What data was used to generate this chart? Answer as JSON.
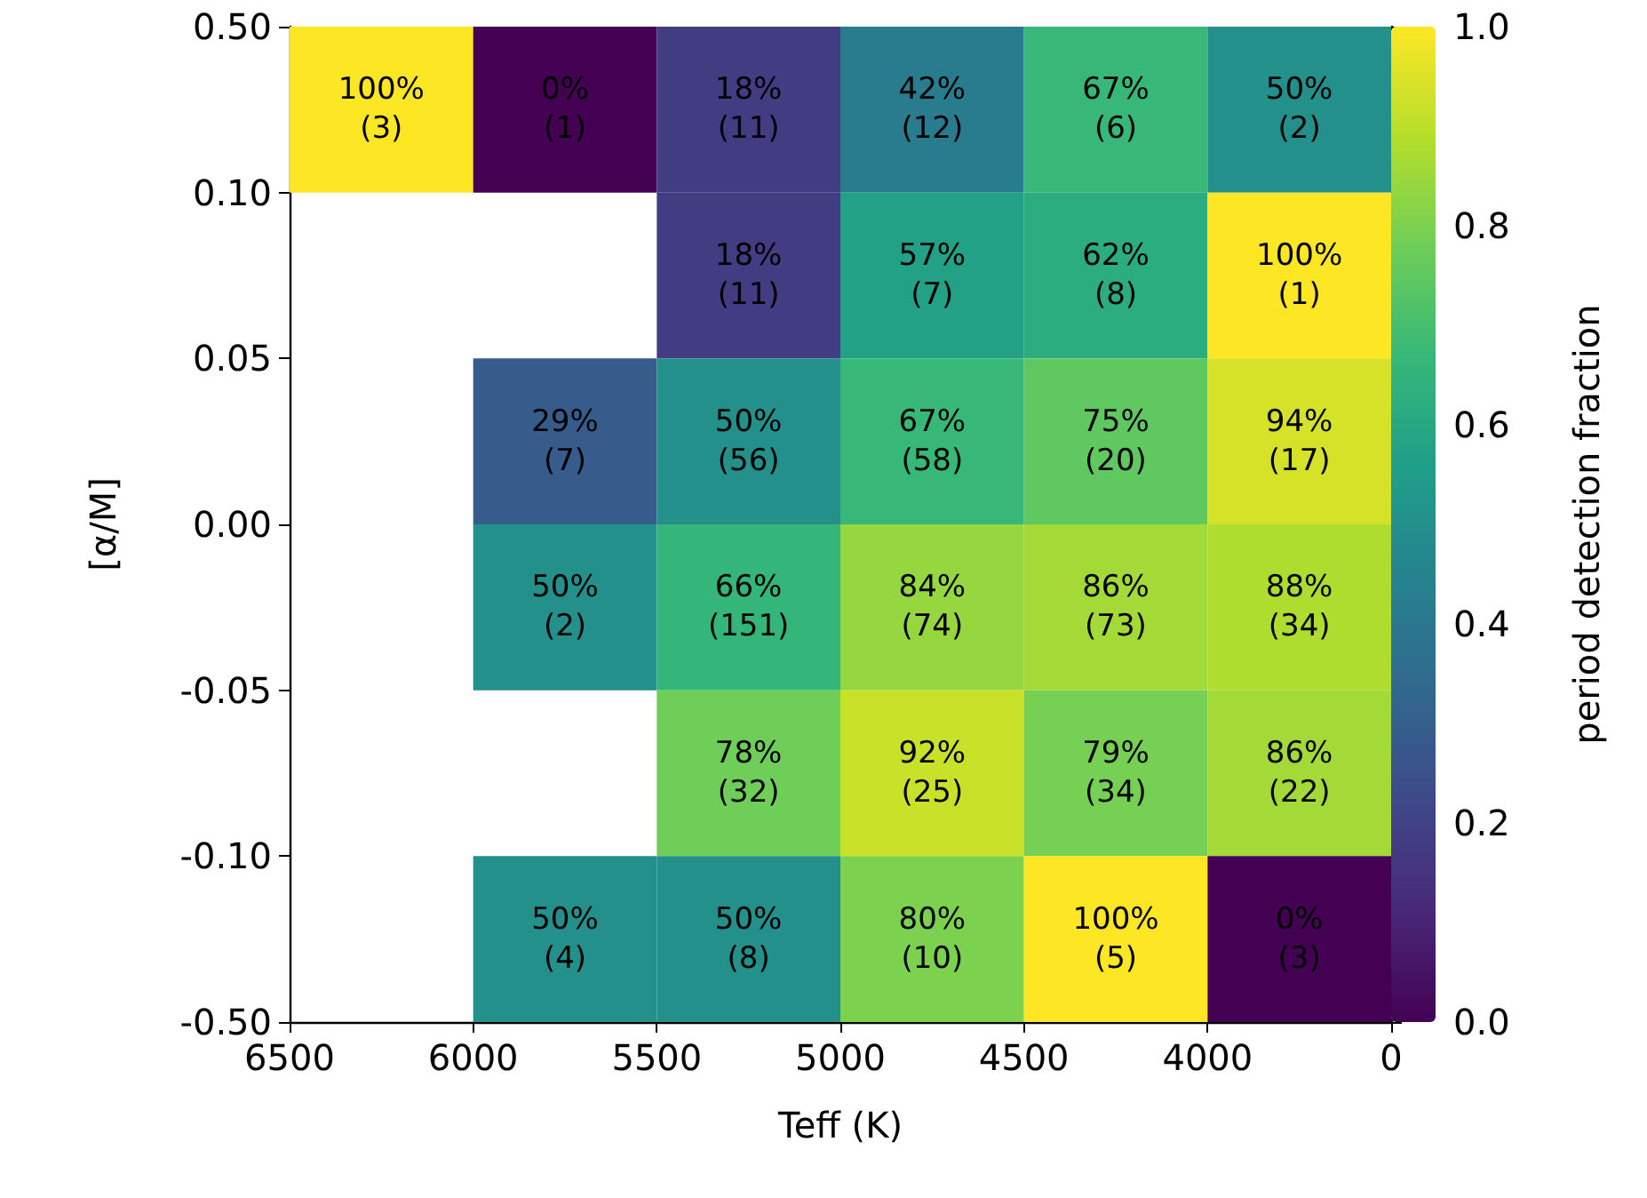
{
  "chart_data": {
    "type": "heatmap",
    "xlabel": "Teff (K)",
    "ylabel": "[α/M]",
    "clabel": "period detection fraction",
    "categories": [
      null,
      null,
      null,
      null,
      null,
      null
    ],
    "y_categories": [
      null,
      null,
      null,
      null,
      null,
      null
    ],
    "annotations": [
      "6500",
      "6000",
      "5500",
      "5000",
      "4500",
      "4000",
      "0",
      "0.50",
      "0.10",
      "0.05",
      "0.00",
      "-0.05",
      "-0.10",
      "-0.50"
    ],
    "cells": [
      [
        1.0,
        0.0,
        0.18,
        0.42,
        0.67,
        0.5
      ],
      [
        null,
        null,
        0.18,
        0.57,
        0.62,
        1.0
      ],
      [
        null,
        0.29,
        0.5,
        0.67,
        0.75,
        0.94
      ],
      [
        null,
        0.5,
        0.66,
        0.84,
        0.86,
        0.88
      ],
      [
        null,
        null,
        0.78,
        0.92,
        0.79,
        0.86
      ],
      [
        null,
        0.5,
        0.5,
        0.8,
        1.0,
        0.0
      ]
    ],
    "cell_labels": [
      [
        "100%\n(3)",
        "0%\n(1)",
        "18%\n(11)",
        "42%\n(12)",
        "67%\n(6)",
        "50%\n(2)"
      ],
      [
        null,
        null,
        "18%\n(11)",
        "57%\n(7)",
        "62%\n(8)",
        "100%\n(1)"
      ],
      [
        null,
        "29%\n(7)",
        "50%\n(56)",
        "67%\n(58)",
        "75%\n(20)",
        "94%\n(17)"
      ],
      [
        null,
        "50%\n(2)",
        "66%\n(151)",
        "84%\n(74)",
        "86%\n(73)",
        "88%\n(34)"
      ],
      [
        null,
        null,
        "78%\n(32)",
        "92%\n(25)",
        "79%\n(34)",
        "86%\n(22)"
      ],
      [
        null,
        "50%\n(4)",
        "50%\n(8)",
        "80%\n(10)",
        "100%\n(5)",
        "0%\n(3)"
      ]
    ],
    "clim": [
      0,
      1
    ],
    "cticks": [
      {
        "value": 0,
        "label": "0.0"
      },
      {
        "value": 0.2,
        "label": "0.2"
      },
      {
        "value": 0.4,
        "label": "0.4"
      },
      {
        "value": 0.6,
        "label": "0.6"
      },
      {
        "value": 0.8,
        "label": "0.8"
      },
      {
        "value": 1,
        "label": "1.0"
      }
    ]
  }
}
